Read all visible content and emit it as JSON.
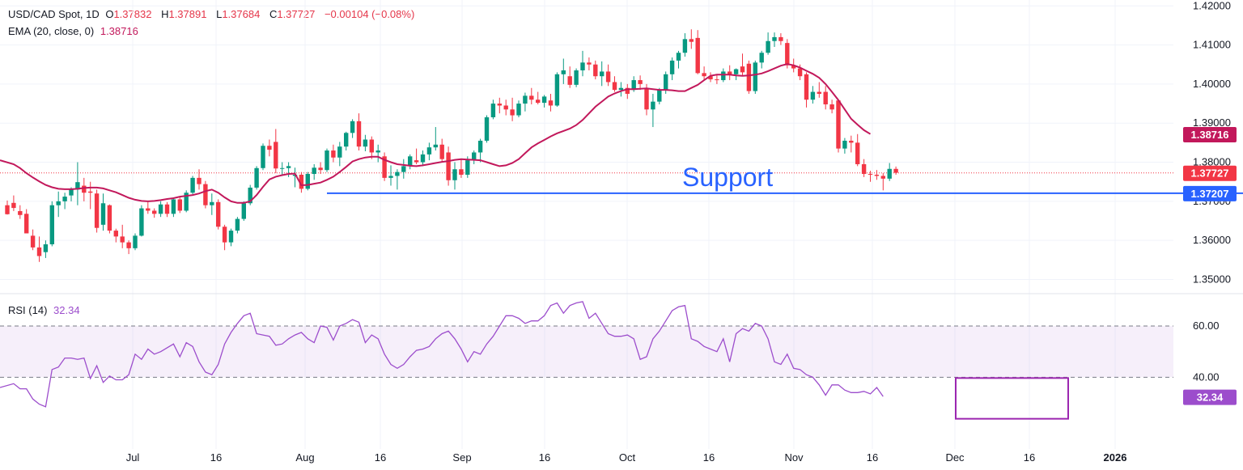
{
  "legend": {
    "symbol": "USD/CAD Spot, 1D",
    "o_label": "O",
    "o_val": "1.37832",
    "h_label": "H",
    "h_val": "1.37891",
    "l_label": "L",
    "l_val": "1.37684",
    "c_label": "C",
    "c_val": "1.37727",
    "change": "−0.00104 (−0.08%)",
    "ema_label": "EMA (20, close, 0)",
    "ema_val": "1.38716",
    "rsi_label": "RSI (14)",
    "rsi_val": "32.34"
  },
  "annotation": {
    "support_text": "Support"
  },
  "colors": {
    "up": "#089981",
    "down": "#f23645",
    "ema": "#c2185b",
    "rsi": "#9c4dcc",
    "support": "#2962ff",
    "last": "#f23645"
  },
  "chart_data": {
    "type": "candlestick",
    "price_axis": {
      "ticks": [
        "1.42000",
        "1.41000",
        "1.40000",
        "1.39000",
        "1.38000",
        "1.37000",
        "1.36000",
        "1.35000"
      ],
      "range": [
        1.347,
        1.4215
      ]
    },
    "time_axis": {
      "ticks": [
        "Jul",
        "16",
        "Aug",
        "16",
        "Sep",
        "16",
        "Oct",
        "16",
        "Nov",
        "16",
        "Dec",
        "16",
        "2026"
      ]
    },
    "badges": {
      "ema": "1.38716",
      "last": "1.37727",
      "support": "1.37207"
    },
    "support_level": 1.37207,
    "ema_values": [
      1.3805,
      1.3795,
      1.3785,
      1.3772,
      1.3761,
      1.3751,
      1.3742,
      1.3736,
      1.3732,
      1.3731,
      1.3731,
      1.3732,
      1.3734,
      1.3735,
      1.3735,
      1.3733,
      1.3728,
      1.3723,
      1.3716,
      1.3709,
      1.3704,
      1.3701,
      1.37,
      1.3701,
      1.3703,
      1.3706,
      1.3708,
      1.3712,
      1.3714,
      1.3716,
      1.372,
      1.3726,
      1.373,
      1.3722,
      1.371,
      1.37,
      1.3696,
      1.3696,
      1.37,
      1.3716,
      1.3737,
      1.3756,
      1.3763,
      1.3767,
      1.377,
      1.3771,
      1.3741,
      1.3742,
      1.3745,
      1.3748,
      1.3755,
      1.3763,
      1.3775,
      1.3788,
      1.3802,
      1.3808,
      1.3812,
      1.3814,
      1.3814,
      1.3806,
      1.38,
      1.3795,
      1.3793,
      1.3791,
      1.379,
      1.3792,
      1.3795,
      1.3798,
      1.3801,
      1.3803,
      1.3806,
      1.3808,
      1.3807,
      1.3806,
      1.3805,
      1.38,
      1.3795,
      1.379,
      1.3792,
      1.3798,
      1.3808,
      1.3823,
      1.3838,
      1.3848,
      1.3857,
      1.3866,
      1.3874,
      1.388,
      1.3886,
      1.3895,
      1.3908,
      1.3925,
      1.3942,
      1.3955,
      1.3968,
      1.3976,
      1.3982,
      1.3987,
      1.3987,
      1.3988,
      1.3989,
      1.3987,
      1.3985,
      1.3985,
      1.3984,
      1.3982,
      1.3982,
      1.399,
      1.3998,
      1.401,
      1.4021,
      1.4024,
      1.4024,
      1.4024,
      1.4022,
      1.4021,
      1.4022,
      1.4024,
      1.4027,
      1.4033,
      1.404,
      1.4047,
      1.4051,
      1.4048,
      1.4042,
      1.4034,
      1.4026,
      1.4016,
      1.4,
      1.398,
      1.3959,
      1.3935,
      1.3911,
      1.3896,
      1.3882,
      1.3872
    ],
    "candles": [
      [
        1.369,
        1.3702,
        1.3666,
        1.3667
      ],
      [
        1.3696,
        1.3715,
        1.3675,
        1.3683
      ],
      [
        1.3675,
        1.369,
        1.3655,
        1.3665
      ],
      [
        1.3668,
        1.368,
        1.3622,
        1.3618
      ],
      [
        1.3612,
        1.3628,
        1.3575,
        1.3582
      ],
      [
        1.3582,
        1.361,
        1.3545,
        1.356
      ],
      [
        1.357,
        1.36,
        1.3555,
        1.359
      ],
      [
        1.359,
        1.37,
        1.3585,
        1.369
      ],
      [
        1.369,
        1.3725,
        1.366,
        1.37
      ],
      [
        1.37,
        1.3722,
        1.368,
        1.3712
      ],
      [
        1.3715,
        1.3736,
        1.37,
        1.373
      ],
      [
        1.373,
        1.38,
        1.369,
        1.3749
      ],
      [
        1.374,
        1.376,
        1.37,
        1.3722
      ],
      [
        1.3725,
        1.375,
        1.368,
        1.3722
      ],
      [
        1.372,
        1.373,
        1.362,
        1.3632
      ],
      [
        1.364,
        1.372,
        1.3625,
        1.3695
      ],
      [
        1.369,
        1.3692,
        1.3618,
        1.3625
      ],
      [
        1.3625,
        1.363,
        1.3595,
        1.361
      ],
      [
        1.361,
        1.364,
        1.358,
        1.3595
      ],
      [
        1.3595,
        1.36,
        1.3565,
        1.358
      ],
      [
        1.358,
        1.3618,
        1.3575,
        1.3612
      ],
      [
        1.3612,
        1.369,
        1.361,
        1.3682
      ],
      [
        1.3682,
        1.3698,
        1.3668,
        1.3676
      ],
      [
        1.3676,
        1.3682,
        1.3658,
        1.3668
      ],
      [
        1.3668,
        1.37,
        1.366,
        1.3692
      ],
      [
        1.3692,
        1.3698,
        1.366,
        1.3668
      ],
      [
        1.3668,
        1.371,
        1.366,
        1.3705
      ],
      [
        1.3705,
        1.3712,
        1.367,
        1.3676
      ],
      [
        1.3676,
        1.3728,
        1.3672,
        1.3722
      ],
      [
        1.3722,
        1.3765,
        1.3718,
        1.376
      ],
      [
        1.376,
        1.3782,
        1.373,
        1.3744
      ],
      [
        1.3744,
        1.3752,
        1.3682,
        1.369
      ],
      [
        1.369,
        1.372,
        1.3665,
        1.3698
      ],
      [
        1.3698,
        1.3705,
        1.3628,
        1.3635
      ],
      [
        1.3635,
        1.364,
        1.3575,
        1.3595
      ],
      [
        1.3595,
        1.363,
        1.3585,
        1.3625
      ],
      [
        1.3625,
        1.366,
        1.3618,
        1.3655
      ],
      [
        1.3655,
        1.37,
        1.365,
        1.3695
      ],
      [
        1.3695,
        1.3742,
        1.369,
        1.3735
      ],
      [
        1.3735,
        1.379,
        1.373,
        1.3785
      ],
      [
        1.3785,
        1.3848,
        1.378,
        1.3842
      ],
      [
        1.3842,
        1.3858,
        1.3815,
        1.3832
      ],
      [
        1.3852,
        1.3885,
        1.3772,
        1.3784
      ],
      [
        1.3784,
        1.38,
        1.3765,
        1.3785
      ],
      [
        1.3785,
        1.38,
        1.3762,
        1.379
      ],
      [
        1.3765,
        1.3786,
        1.3736,
        1.3768
      ],
      [
        1.3768,
        1.3775,
        1.3722,
        1.3732
      ],
      [
        1.3732,
        1.3775,
        1.3728,
        1.377
      ],
      [
        1.377,
        1.3795,
        1.3755,
        1.3786
      ],
      [
        1.3786,
        1.38,
        1.377,
        1.378
      ],
      [
        1.378,
        1.3835,
        1.3775,
        1.383
      ],
      [
        1.383,
        1.3845,
        1.38,
        1.3812
      ],
      [
        1.3812,
        1.3852,
        1.379,
        1.384
      ],
      [
        1.384,
        1.3878,
        1.383,
        1.3875
      ],
      [
        1.3875,
        1.391,
        1.3862,
        1.3905
      ],
      [
        1.3905,
        1.3925,
        1.383,
        1.384
      ],
      [
        1.384,
        1.387,
        1.3828,
        1.3858
      ],
      [
        1.3858,
        1.3866,
        1.3808,
        1.3825
      ],
      [
        1.3825,
        1.3845,
        1.38,
        1.383
      ],
      [
        1.3815,
        1.3825,
        1.3752,
        1.376
      ],
      [
        1.376,
        1.3792,
        1.374,
        1.3765
      ],
      [
        1.3765,
        1.3782,
        1.373,
        1.3775
      ],
      [
        1.3775,
        1.3808,
        1.3758,
        1.379
      ],
      [
        1.379,
        1.382,
        1.3782,
        1.3815
      ],
      [
        1.3805,
        1.3835,
        1.3795,
        1.38
      ],
      [
        1.38,
        1.383,
        1.379,
        1.382
      ],
      [
        1.382,
        1.385,
        1.3805,
        1.3838
      ],
      [
        1.3838,
        1.389,
        1.383,
        1.3845
      ],
      [
        1.3845,
        1.386,
        1.38,
        1.3808
      ],
      [
        1.3825,
        1.384,
        1.374,
        1.3754
      ],
      [
        1.3754,
        1.38,
        1.373,
        1.3782
      ],
      [
        1.3782,
        1.3808,
        1.376,
        1.3768
      ],
      [
        1.3768,
        1.3815,
        1.376,
        1.3805
      ],
      [
        1.3805,
        1.383,
        1.3795,
        1.3825
      ],
      [
        1.3825,
        1.386,
        1.38,
        1.3855
      ],
      [
        1.3855,
        1.392,
        1.385,
        1.3915
      ],
      [
        1.3915,
        1.396,
        1.391,
        1.395
      ],
      [
        1.395,
        1.3965,
        1.3925,
        1.3945
      ],
      [
        1.3945,
        1.396,
        1.392,
        1.3935
      ],
      [
        1.3935,
        1.3965,
        1.3905,
        1.392
      ],
      [
        1.392,
        1.3958,
        1.3915,
        1.395
      ],
      [
        1.395,
        1.3978,
        1.393,
        1.397
      ],
      [
        1.397,
        1.399,
        1.3948,
        1.396
      ],
      [
        1.396,
        1.398,
        1.3948,
        1.3952
      ],
      [
        1.3952,
        1.3972,
        1.394,
        1.3968
      ],
      [
        1.3958,
        1.3975,
        1.393,
        1.3945
      ],
      [
        1.3945,
        1.403,
        1.3942,
        1.4025
      ],
      [
        1.4025,
        1.4065,
        1.4,
        1.4035
      ],
      [
        1.402,
        1.4045,
        1.399,
        1.3998
      ],
      [
        1.3998,
        1.404,
        1.3992,
        1.4035
      ],
      [
        1.4035,
        1.4085,
        1.402,
        1.4055
      ],
      [
        1.4055,
        1.4068,
        1.4035,
        1.405
      ],
      [
        1.405,
        1.406,
        1.4012,
        1.402
      ],
      [
        1.402,
        1.4058,
        1.3995,
        1.4032
      ],
      [
        1.4032,
        1.405,
        1.3995,
        1.4005
      ],
      [
        1.4005,
        1.402,
        1.398,
        1.3985
      ],
      [
        1.3985,
        1.4005,
        1.3968,
        1.399
      ],
      [
        1.399,
        1.4,
        1.3962,
        1.3975
      ],
      [
        1.3985,
        1.402,
        1.398,
        1.401
      ],
      [
        1.401,
        1.4022,
        1.3985,
        1.4
      ],
      [
        1.399,
        1.4,
        1.392,
        1.3935
      ],
      [
        1.3935,
        1.3975,
        1.389,
        1.3955
      ],
      [
        1.3955,
        1.399,
        1.3948,
        1.3985
      ],
      [
        1.3985,
        1.4032,
        1.3975,
        1.4025
      ],
      [
        1.4025,
        1.4068,
        1.401,
        1.406
      ],
      [
        1.406,
        1.4085,
        1.404,
        1.408
      ],
      [
        1.408,
        1.413,
        1.407,
        1.4115
      ],
      [
        1.4115,
        1.414,
        1.409,
        1.4108
      ],
      [
        1.4118,
        1.4138,
        1.4025,
        1.4028
      ],
      [
        1.4028,
        1.4045,
        1.401,
        1.402
      ],
      [
        1.402,
        1.403,
        1.4005,
        1.4012
      ],
      [
        1.4012,
        1.4025,
        1.4,
        1.401
      ],
      [
        1.401,
        1.404,
        1.4005,
        1.4032
      ],
      [
        1.4032,
        1.4048,
        1.401,
        1.4025
      ],
      [
        1.4025,
        1.404,
        1.401,
        1.4038
      ],
      [
        1.4045,
        1.4078,
        1.402,
        1.403
      ],
      [
        1.4052,
        1.406,
        1.3975,
        1.3982
      ],
      [
        1.3982,
        1.406,
        1.3975,
        1.4055
      ],
      [
        1.4055,
        1.4085,
        1.404,
        1.408
      ],
      [
        1.408,
        1.4132,
        1.4075,
        1.411
      ],
      [
        1.411,
        1.4132,
        1.4095,
        1.412
      ],
      [
        1.412,
        1.413,
        1.41,
        1.411
      ],
      [
        1.4105,
        1.4115,
        1.404,
        1.4048
      ],
      [
        1.4048,
        1.4065,
        1.403,
        1.404
      ],
      [
        1.404,
        1.405,
        1.401,
        1.402
      ],
      [
        1.4025,
        1.403,
        1.394,
        1.396
      ],
      [
        1.396,
        1.3995,
        1.395,
        1.398
      ],
      [
        1.398,
        1.4005,
        1.3965,
        1.3975
      ],
      [
        1.398,
        1.3995,
        1.3935,
        1.3948
      ],
      [
        1.3948,
        1.396,
        1.3925,
        1.3935
      ],
      [
        1.3958,
        1.396,
        1.3825,
        1.3835
      ],
      [
        1.3835,
        1.3862,
        1.3822,
        1.3855
      ],
      [
        1.3855,
        1.3868,
        1.3825,
        1.385
      ],
      [
        1.385,
        1.3872,
        1.379,
        1.3795
      ],
      [
        1.3795,
        1.3808,
        1.3762,
        1.377
      ],
      [
        1.377,
        1.3778,
        1.375,
        1.3768
      ],
      [
        1.3768,
        1.378,
        1.3755,
        1.3765
      ],
      [
        1.3765,
        1.3772,
        1.3728,
        1.3758
      ],
      [
        1.3758,
        1.3798,
        1.3752,
        1.3783
      ],
      [
        1.3783,
        1.3789,
        1.3768,
        1.3773
      ]
    ],
    "rsi_axis": {
      "ticks": [
        "60.00",
        "40.00"
      ],
      "range": [
        12,
        72
      ]
    },
    "rsi_values": [
      36,
      37.5,
      35.5,
      35.5,
      31.5,
      29.5,
      28.5,
      43,
      44,
      47.5,
      47.5,
      47,
      47.5,
      39.5,
      44.5,
      38,
      40.5,
      39,
      39,
      41,
      49,
      47,
      51,
      49,
      50,
      51.5,
      53,
      48,
      53.5,
      52,
      46,
      42,
      41,
      45,
      53,
      57.5,
      61,
      64,
      65,
      57,
      56.5,
      56,
      52.5,
      53,
      55,
      56.5,
      57.5,
      55,
      53.5,
      60,
      59.5,
      54.5,
      60,
      61,
      62.5,
      61.5,
      53.5,
      56.5,
      55,
      49,
      45,
      43.5,
      45,
      48,
      50.5,
      51,
      52,
      55,
      57,
      58,
      55,
      51,
      46,
      50,
      49,
      53,
      56,
      60,
      64,
      64,
      63,
      61,
      62,
      62,
      64,
      68,
      69,
      65,
      68,
      69,
      69.5,
      63,
      65,
      61,
      57,
      56,
      56,
      56.5,
      55,
      47,
      48,
      55,
      58,
      62,
      66,
      67.5,
      68,
      55,
      54,
      52,
      51,
      50,
      55,
      46,
      57,
      59,
      58,
      61,
      60,
      55,
      46,
      45,
      49,
      43.5,
      43,
      41,
      40,
      37,
      33,
      37,
      37,
      35,
      34,
      34,
      34.5,
      33.5,
      36,
      32.5
    ]
  }
}
